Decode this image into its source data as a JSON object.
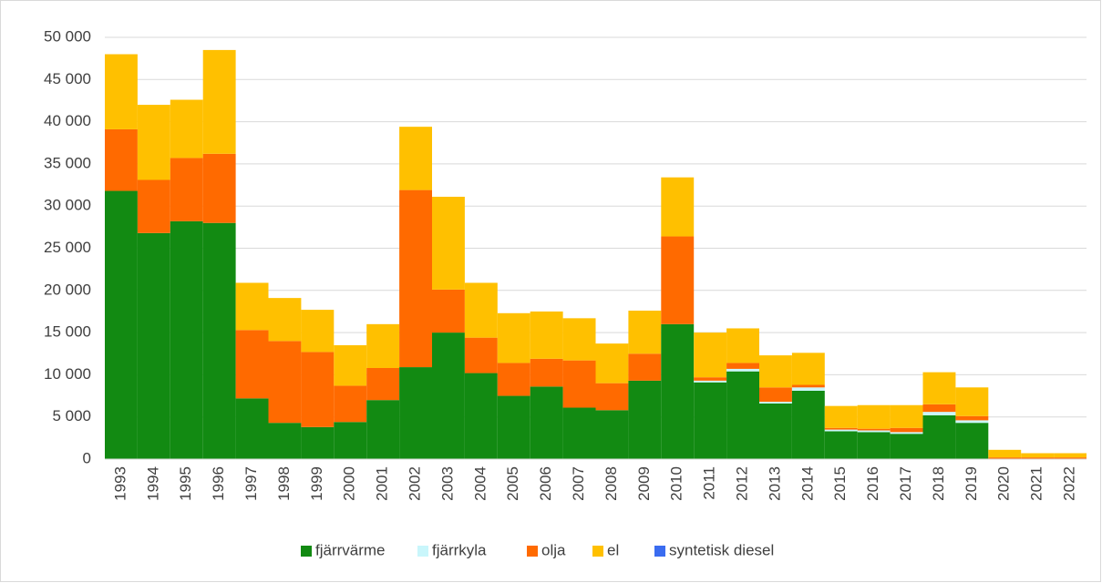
{
  "chart_data": {
    "type": "bar",
    "stacked": true,
    "categories": [
      "1993",
      "1994",
      "1995",
      "1996",
      "1997",
      "1998",
      "1999",
      "2000",
      "2001",
      "2002",
      "2003",
      "2004",
      "2005",
      "2006",
      "2007",
      "2008",
      "2009",
      "2010",
      "2011",
      "2012",
      "2013",
      "2014",
      "2015",
      "2016",
      "2017",
      "2018",
      "2019",
      "2020",
      "2021",
      "2022"
    ],
    "series": [
      {
        "name": "fjärrvärme",
        "color": "#128a12",
        "values": [
          31800,
          26800,
          28200,
          28000,
          7200,
          4300,
          3800,
          4400,
          7000,
          10900,
          15000,
          10200,
          7500,
          8600,
          6100,
          5800,
          9300,
          16000,
          9100,
          10400,
          6600,
          8100,
          3300,
          3200,
          3000,
          5200,
          4300,
          0,
          0,
          0
        ]
      },
      {
        "name": "fjärrkyla",
        "color": "#c9f6fb",
        "values": [
          0,
          0,
          0,
          0,
          0,
          0,
          0,
          0,
          0,
          0,
          0,
          0,
          0,
          0,
          0,
          0,
          0,
          0,
          200,
          300,
          200,
          400,
          200,
          200,
          200,
          400,
          300,
          0,
          0,
          0
        ]
      },
      {
        "name": "olja",
        "color": "#ff6a00",
        "values": [
          7300,
          6300,
          7500,
          8200,
          8100,
          9700,
          8900,
          4300,
          3800,
          21000,
          5100,
          4200,
          3900,
          3300,
          5600,
          3200,
          3200,
          10400,
          400,
          700,
          1700,
          300,
          200,
          200,
          500,
          900,
          500,
          200,
          200,
          200
        ]
      },
      {
        "name": "el",
        "color": "#ffc000",
        "values": [
          8900,
          8900,
          6900,
          12300,
          5600,
          5100,
          5000,
          4800,
          5200,
          7500,
          11000,
          6500,
          5900,
          5600,
          5000,
          4700,
          5100,
          7000,
          5300,
          4100,
          3800,
          3800,
          2600,
          2800,
          2700,
          3800,
          3400,
          900,
          500,
          500
        ]
      },
      {
        "name": "syntetisk diesel",
        "color": "#3a6cf0",
        "values": [
          0,
          0,
          0,
          0,
          0,
          0,
          0,
          0,
          0,
          0,
          0,
          0,
          0,
          0,
          0,
          0,
          0,
          0,
          0,
          0,
          0,
          0,
          0,
          0,
          0,
          0,
          0,
          0,
          0,
          0
        ]
      }
    ],
    "ylim": [
      0,
      50000
    ],
    "yticks": [
      0,
      {
        "value": 5000,
        "label": "5 000"
      },
      {
        "value": 10000,
        "label": "10 000"
      },
      {
        "value": 15000,
        "label": "15 000"
      },
      {
        "value": 20000,
        "label": "20 000"
      },
      {
        "value": 25000,
        "label": "25 000"
      },
      {
        "value": 30000,
        "label": "30 000"
      },
      {
        "value": 35000,
        "label": "35 000"
      },
      {
        "value": 40000,
        "label": "40 000"
      },
      {
        "value": 45000,
        "label": "45 000"
      },
      {
        "value": 50000,
        "label": "50 000"
      }
    ],
    "grid": true,
    "legend": "bottom"
  }
}
